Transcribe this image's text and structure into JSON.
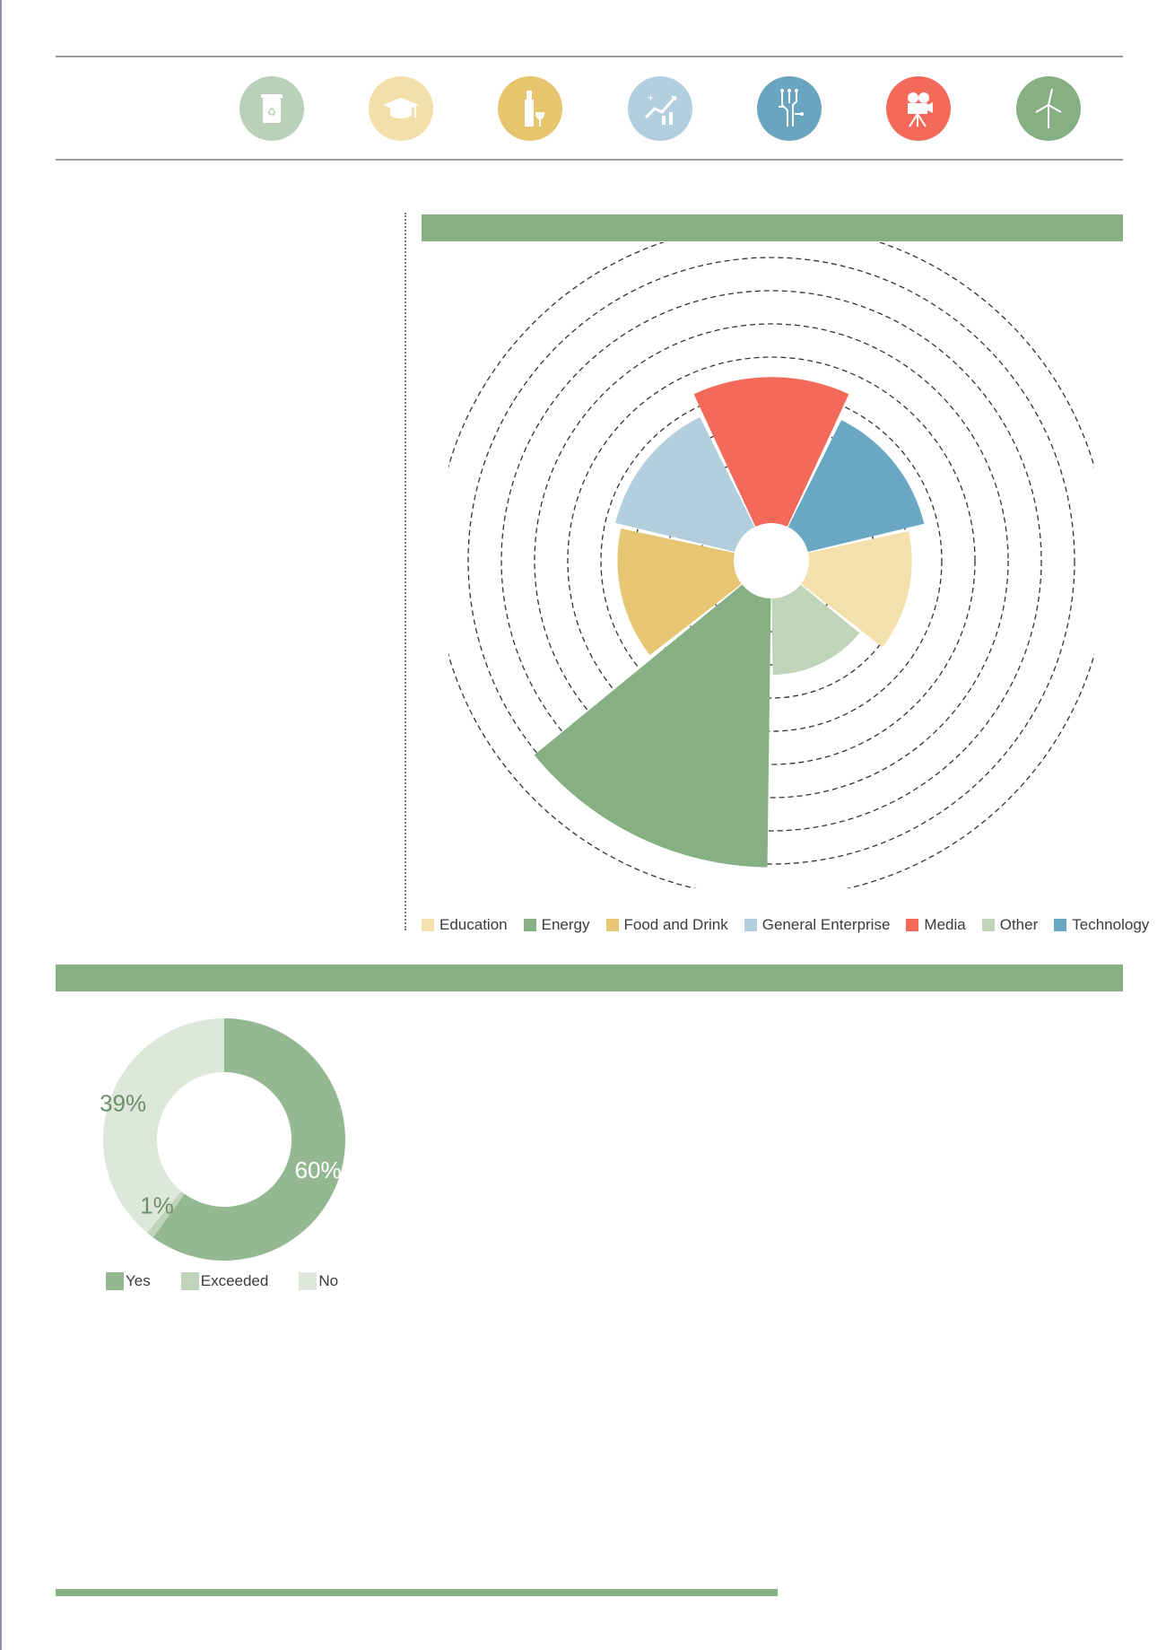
{
  "icons": [
    {
      "name": "recycling-bin-icon",
      "color": "#b9d1b8"
    },
    {
      "name": "graduation-cap-icon",
      "color": "#f2dfaa"
    },
    {
      "name": "bottle-and-glass-icon",
      "color": "#e7c46e"
    },
    {
      "name": "growth-chart-icon",
      "color": "#b3cfdd"
    },
    {
      "name": "circuit-board-icon",
      "color": "#6aa5c0"
    },
    {
      "name": "film-camera-icon",
      "color": "#f36a5a"
    },
    {
      "name": "wind-turbine-icon",
      "color": "#86b084"
    }
  ],
  "colors": {
    "band": "#86b084",
    "Education": "#f4e0ad",
    "Energy": "#86b084",
    "Food and Drink": "#e7c673",
    "General Enterprise": "#b3cfdd",
    "Media": "#f36a5a",
    "Other": "#bfd4b8",
    "Technology": "#6aa7c2",
    "Yes": "#94b891",
    "Exceeded": "#bfd4b8",
    "No": "#dde7da"
  },
  "chart_data": [
    {
      "type": "polar-area",
      "categories": [
        "Media",
        "Technology",
        "Education",
        "Other",
        "Energy",
        "Food and Drink",
        "General Enterprise"
      ],
      "values": [
        4.4,
        3.6,
        3.1,
        2.3,
        8.1,
        3.5,
        3.7
      ],
      "rings": [
        1,
        2,
        3,
        4,
        5,
        6,
        7,
        8,
        9
      ],
      "legend": [
        "Education",
        "Energy",
        "Food and Drink",
        "General Enterprise",
        "Media",
        "Other",
        "Technology"
      ],
      "legend_position": "bottom"
    },
    {
      "type": "pie",
      "style": "donut",
      "categories": [
        "Yes",
        "Exceeded",
        "No"
      ],
      "values": [
        60,
        1,
        39
      ],
      "labels": [
        "60%",
        "1%",
        "39%"
      ],
      "legend_position": "bottom-left"
    }
  ]
}
